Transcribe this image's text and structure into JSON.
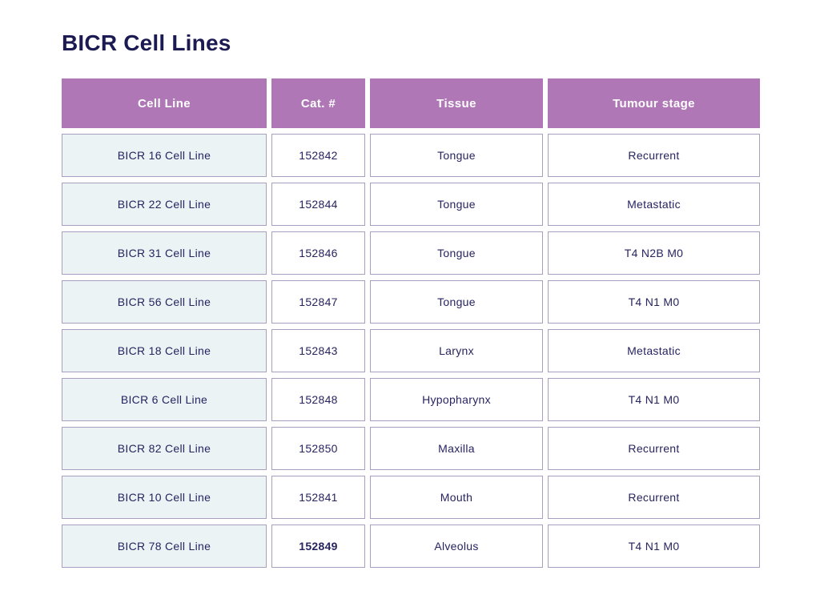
{
  "page": {
    "title": "BICR Cell Lines"
  },
  "colors": {
    "header_bg": "#b077b7",
    "header_text": "#ffffff",
    "cell_text": "#262460",
    "title_text": "#1c1a52",
    "first_col_bg": "#ecf3f5",
    "cell_border": "#a89fc0",
    "page_bg": "#ffffff"
  },
  "chart_data": {
    "type": "table",
    "title": "BICR Cell Lines",
    "columns": [
      "Cell Line",
      "Cat. #",
      "Tissue",
      "Tumour stage"
    ],
    "rows": [
      [
        "BICR 16 Cell Line",
        "152842",
        "Tongue",
        "Recurrent"
      ],
      [
        "BICR 22 Cell Line",
        "152844",
        "Tongue",
        "Metastatic"
      ],
      [
        "BICR 31 Cell Line",
        "152846",
        "Tongue",
        "T4 N2B M0"
      ],
      [
        "BICR 56 Cell Line",
        "152847",
        "Tongue",
        "T4 N1 M0"
      ],
      [
        "BICR 18 Cell Line",
        "152843",
        "Larynx",
        "Metastatic"
      ],
      [
        "BICR 6 Cell Line",
        "152848",
        "Hypopharynx",
        "T4 N1 M0"
      ],
      [
        "BICR 82 Cell Line",
        "152850",
        "Maxilla",
        "Recurrent"
      ],
      [
        "BICR 10 Cell Line",
        "152841",
        "Mouth",
        "Recurrent"
      ],
      [
        "BICR 78 Cell Line",
        "152849",
        "Alveolus",
        "T4 N1 M0"
      ]
    ],
    "bold_cells": [
      [
        8,
        1
      ]
    ],
    "layout": {
      "header_style": "solid-fill",
      "first_column_shaded": true,
      "cell_alignment": "center"
    }
  }
}
